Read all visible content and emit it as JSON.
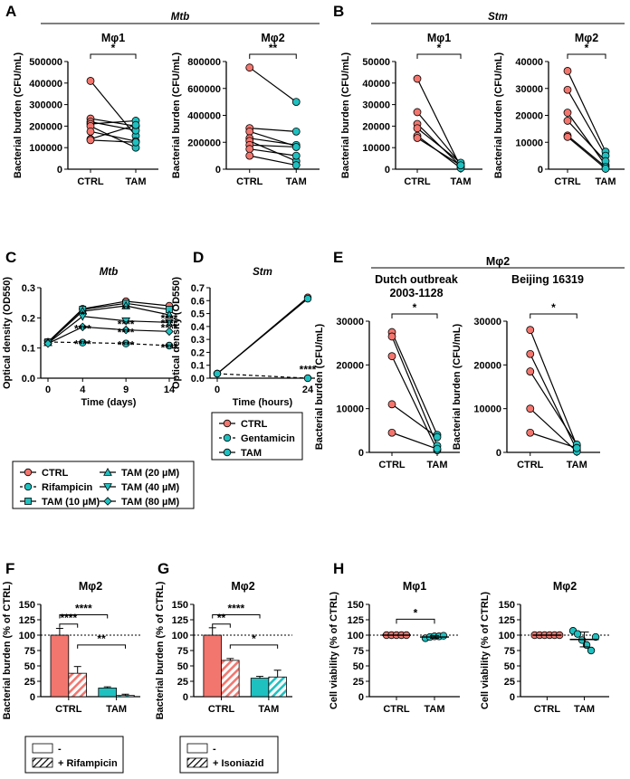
{
  "colors": {
    "ctrl": "#f2766e",
    "tam": "#1fc0c0",
    "line": "#000000"
  },
  "icons": {
    "point_marker": "circle",
    "hatch": "diagonal-stripes"
  },
  "panel_labels": [
    "A",
    "B",
    "C",
    "D",
    "E",
    "F",
    "G",
    "H"
  ],
  "headers": {
    "a_pathogen": "Mtb",
    "b_pathogen": "Stm",
    "e_header": "Mφ2",
    "e_strain1_line1": "Dutch outbreak",
    "e_strain1_line2": "2003-1128",
    "e_strain2": "Beijing 16319",
    "c_title": "Mtb",
    "d_title": "Stm"
  },
  "legend_c": {
    "items": [
      "CTRL",
      "Rifampicin",
      "TAM (10 µM)",
      "TAM (20 µM)",
      "TAM (40 µM)",
      "TAM (80 µM)"
    ]
  },
  "legend_d": {
    "items": [
      "CTRL",
      "Gentamicin",
      "TAM"
    ]
  },
  "legend_f": {
    "items": [
      "-",
      "+ Rifampicin"
    ]
  },
  "legend_g": {
    "items": [
      "-",
      "+ Isoniazid"
    ]
  },
  "chart_data": [
    {
      "id": "A1",
      "type": "scatter",
      "title": "Mφ1",
      "ylabel": "Bacterial burden (CFU/mL)",
      "categories": [
        "CTRL",
        "TAM"
      ],
      "ylim": [
        0,
        500000
      ],
      "yticks": [
        "0",
        "100000",
        "200000",
        "300000",
        "400000",
        "500000"
      ],
      "pairs": [
        [
          410000,
          155000
        ],
        [
          235000,
          200000
        ],
        [
          220000,
          180000
        ],
        [
          210000,
          225000
        ],
        [
          200000,
          100000
        ],
        [
          175000,
          130000
        ],
        [
          140000,
          205000
        ],
        [
          135000,
          125000
        ]
      ],
      "significance": [
        {
          "from": "CTRL",
          "to": "TAM",
          "label": "*"
        }
      ]
    },
    {
      "id": "A2",
      "type": "scatter",
      "title": "Mφ2",
      "ylabel": "Bacterial burden (CFU/mL)",
      "categories": [
        "CTRL",
        "TAM"
      ],
      "ylim": [
        0,
        800000
      ],
      "yticks": [
        "0",
        "200000",
        "400000",
        "600000",
        "800000"
      ],
      "pairs": [
        [
          755000,
          500000
        ],
        [
          305000,
          280000
        ],
        [
          280000,
          170000
        ],
        [
          230000,
          180000
        ],
        [
          210000,
          60000
        ],
        [
          180000,
          165000
        ],
        [
          150000,
          100000
        ],
        [
          100000,
          30000
        ]
      ],
      "significance": [
        {
          "from": "CTRL",
          "to": "TAM",
          "label": "**"
        }
      ]
    },
    {
      "id": "B1",
      "type": "scatter",
      "title": "Mφ1",
      "ylabel": "Bacterial burden (CFU/mL)",
      "categories": [
        "CTRL",
        "TAM"
      ],
      "ylim": [
        0,
        50000
      ],
      "yticks": [
        "0",
        "10000",
        "20000",
        "30000",
        "40000",
        "50000"
      ],
      "pairs": [
        [
          42000,
          1000
        ],
        [
          26500,
          2500
        ],
        [
          21000,
          1500
        ],
        [
          19000,
          3000
        ],
        [
          15500,
          500
        ],
        [
          14500,
          1800
        ]
      ],
      "significance": [
        {
          "from": "CTRL",
          "to": "TAM",
          "label": "*"
        }
      ]
    },
    {
      "id": "B2",
      "type": "scatter",
      "title": "Mφ2",
      "ylabel": "Bacterial burden (CFU/mL)",
      "categories": [
        "CTRL",
        "TAM"
      ],
      "ylim": [
        0,
        40000
      ],
      "yticks": [
        "0",
        "10000",
        "20000",
        "30000",
        "40000"
      ],
      "pairs": [
        [
          36500,
          6500
        ],
        [
          29500,
          5000
        ],
        [
          21000,
          1500
        ],
        [
          18000,
          3000
        ],
        [
          12500,
          800
        ],
        [
          12000,
          200
        ]
      ],
      "significance": [
        {
          "from": "CTRL",
          "to": "TAM",
          "label": "*"
        }
      ]
    },
    {
      "id": "C",
      "type": "line",
      "title": "Mtb",
      "xlabel": "Time (days)",
      "ylabel": "Optical density (OD550)",
      "x": [
        0,
        4,
        9,
        14
      ],
      "xticks": [
        "0",
        "4",
        "9",
        "14"
      ],
      "ylim": [
        0,
        0.3
      ],
      "yticks": [
        "0.0",
        "0.1",
        "0.2",
        "0.3"
      ],
      "series": [
        {
          "name": "CTRL",
          "values": [
            0.12,
            0.23,
            0.255,
            0.24
          ],
          "color": "#f2766e",
          "marker": "circle",
          "dashed": false
        },
        {
          "name": "Rifampicin",
          "values": [
            0.12,
            0.118,
            0.115,
            0.108
          ],
          "color": "#1fc0c0",
          "marker": "circle",
          "dashed": true
        },
        {
          "name": "TAM (10 µM)",
          "values": [
            0.12,
            0.228,
            0.248,
            0.228
          ],
          "color": "#1fc0c0",
          "marker": "square",
          "dashed": false
        },
        {
          "name": "TAM (20 µM)",
          "values": [
            0.118,
            0.222,
            0.24,
            0.21
          ],
          "color": "#1fc0c0",
          "marker": "triangle-up",
          "dashed": false
        },
        {
          "name": "TAM (40 µM)",
          "values": [
            0.116,
            0.205,
            0.19,
            0.185
          ],
          "color": "#1fc0c0",
          "marker": "triangle-down",
          "dashed": false
        },
        {
          "name": "TAM (80 µM)",
          "values": [
            0.115,
            0.17,
            0.16,
            0.155
          ],
          "color": "#1fc0c0",
          "marker": "diamond",
          "dashed": false
        }
      ],
      "annotations": [
        {
          "x": 4,
          "y": 0.198,
          "label": "*"
        },
        {
          "x": 4,
          "y": 0.152,
          "label": "****"
        },
        {
          "x": 4,
          "y": 0.1,
          "label": "****"
        },
        {
          "x": 9,
          "y": 0.218,
          "label": "**"
        },
        {
          "x": 9,
          "y": 0.166,
          "label": "****"
        },
        {
          "x": 9,
          "y": 0.14,
          "label": "****"
        },
        {
          "x": 9,
          "y": 0.097,
          "label": "****"
        },
        {
          "x": 14,
          "y": 0.186,
          "label": "****"
        },
        {
          "x": 14,
          "y": 0.17,
          "label": "****"
        },
        {
          "x": 14,
          "y": 0.154,
          "label": "****"
        },
        {
          "x": 14,
          "y": 0.089,
          "label": "****"
        }
      ]
    },
    {
      "id": "D",
      "type": "line",
      "title": "Stm",
      "xlabel": "Time (hours)",
      "ylabel": "Optical density (OD550)",
      "x": [
        0,
        24
      ],
      "xticks": [
        "0",
        "24"
      ],
      "ylim": [
        0,
        0.7
      ],
      "yticks": [
        "0.0",
        "0.1",
        "0.2",
        "0.3",
        "0.4",
        "0.5",
        "0.6",
        "0.7"
      ],
      "series": [
        {
          "name": "CTRL",
          "values": [
            0.035,
            0.625
          ],
          "color": "#f2766e",
          "marker": "circle",
          "dashed": false
        },
        {
          "name": "Gentamicin",
          "values": [
            0.035,
            0.0
          ],
          "color": "#1fc0c0",
          "marker": "circle",
          "dashed": true
        },
        {
          "name": "TAM",
          "values": [
            0.035,
            0.615
          ],
          "color": "#1fc0c0",
          "marker": "circle",
          "dashed": false
        }
      ],
      "annotations": [
        {
          "x": 24,
          "y": 0.04,
          "label": "****"
        }
      ]
    },
    {
      "id": "E1",
      "type": "scatter",
      "title": "",
      "ylabel": "Bacterial burden (CFU/mL)",
      "categories": [
        "CTRL",
        "TAM"
      ],
      "ylim": [
        0,
        30000
      ],
      "yticks": [
        "0",
        "10000",
        "20000",
        "30000"
      ],
      "pairs": [
        [
          27500,
          4000
        ],
        [
          26500,
          1500
        ],
        [
          22000,
          500
        ],
        [
          11000,
          3500
        ],
        [
          4500,
          800
        ]
      ],
      "significance": [
        {
          "from": "CTRL",
          "to": "TAM",
          "label": "*"
        }
      ]
    },
    {
      "id": "E2",
      "type": "scatter",
      "title": "",
      "ylabel": "Bacterial burden (CFU/mL)",
      "categories": [
        "CTRL",
        "TAM"
      ],
      "ylim": [
        0,
        30000
      ],
      "yticks": [
        "0",
        "10000",
        "20000",
        "30000"
      ],
      "pairs": [
        [
          28000,
          1500
        ],
        [
          22500,
          500
        ],
        [
          18500,
          1800
        ],
        [
          10000,
          200
        ],
        [
          4500,
          1000
        ]
      ],
      "significance": [
        {
          "from": "CTRL",
          "to": "TAM",
          "label": "*"
        }
      ]
    },
    {
      "id": "F",
      "type": "bar",
      "title": "Mφ2",
      "ylabel": "Bacterial burden (% of CTRL)",
      "categories": [
        "CTRL",
        "TAM"
      ],
      "ylim": [
        0,
        150
      ],
      "yticks": [
        "0",
        "25",
        "50",
        "75",
        "100",
        "125",
        "150"
      ],
      "series": [
        {
          "name": "-",
          "values": [
            100,
            14
          ],
          "errors": [
            11,
            2
          ]
        },
        {
          "name": "+ Rifampicin",
          "values": [
            38,
            2
          ],
          "errors": [
            11,
            2
          ]
        }
      ],
      "reference_line": 100,
      "significance": [
        {
          "bars": [
            0,
            1
          ],
          "label": "****"
        },
        {
          "bars": [
            0,
            2
          ],
          "label": "****"
        },
        {
          "bars": [
            1,
            3
          ],
          "label": "**"
        }
      ]
    },
    {
      "id": "G",
      "type": "bar",
      "title": "Mφ2",
      "ylabel": "Bacterial burden (% of CTRL)",
      "categories": [
        "CTRL",
        "TAM"
      ],
      "ylim": [
        0,
        150
      ],
      "yticks": [
        "0",
        "25",
        "50",
        "75",
        "100",
        "125",
        "150"
      ],
      "series": [
        {
          "name": "-",
          "values": [
            100,
            30
          ],
          "errors": [
            12,
            3
          ]
        },
        {
          "name": "+ Isoniazid",
          "values": [
            59,
            32
          ],
          "errors": [
            3,
            11
          ]
        }
      ],
      "reference_line": 100,
      "significance": [
        {
          "bars": [
            0,
            1
          ],
          "label": "**"
        },
        {
          "bars": [
            0,
            2
          ],
          "label": "****"
        },
        {
          "bars": [
            1,
            3
          ],
          "label": "*"
        }
      ]
    },
    {
      "id": "H1",
      "type": "scatter",
      "title": "Mφ1",
      "ylabel": "Cell viability (% of CTRL)",
      "categories": [
        "CTRL",
        "TAM"
      ],
      "ylim": [
        0,
        150
      ],
      "yticks": [
        "0",
        "25",
        "50",
        "75",
        "100",
        "125",
        "150"
      ],
      "points": [
        [
          100,
          100,
          100,
          100,
          100
        ],
        [
          95,
          97,
          98,
          98,
          99
        ]
      ],
      "means": [
        100,
        97
      ],
      "sds": [
        0,
        2
      ],
      "reference_line": 100,
      "significance": [
        {
          "from": "CTRL",
          "to": "TAM",
          "label": "*"
        }
      ]
    },
    {
      "id": "H2",
      "type": "scatter",
      "title": "Mφ2",
      "ylabel": "Cell viability (% of CTRL)",
      "categories": [
        "CTRL",
        "TAM"
      ],
      "ylim": [
        0,
        150
      ],
      "yticks": [
        "0",
        "25",
        "50",
        "75",
        "100",
        "125",
        "150"
      ],
      "points": [
        [
          100,
          100,
          100,
          100,
          100,
          100
        ],
        [
          107,
          102,
          92,
          84,
          75,
          97
        ]
      ],
      "means": [
        100,
        93
      ],
      "sds": [
        0,
        12
      ],
      "reference_line": 100,
      "significance": []
    }
  ]
}
